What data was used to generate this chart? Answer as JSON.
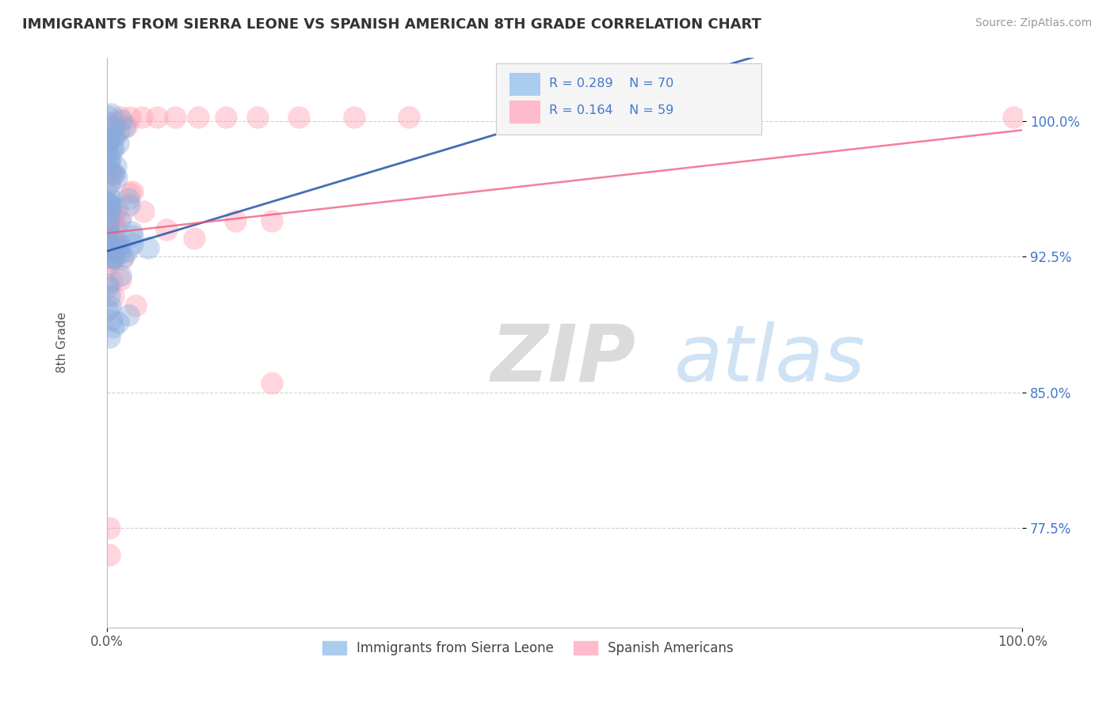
{
  "title": "IMMIGRANTS FROM SIERRA LEONE VS SPANISH AMERICAN 8TH GRADE CORRELATION CHART",
  "source": "Source: ZipAtlas.com",
  "ylabel": "8th Grade",
  "xlim": [
    0.0,
    1.0
  ],
  "ylim": [
    0.72,
    1.035
  ],
  "yticks": [
    0.775,
    0.85,
    0.925,
    1.0
  ],
  "ytick_labels": [
    "77.5%",
    "85.0%",
    "92.5%",
    "100.0%"
  ],
  "xticks": [
    0.0,
    1.0
  ],
  "xtick_labels": [
    "0.0%",
    "100.0%"
  ],
  "legend_label1": "Immigrants from Sierra Leone",
  "legend_label2": "Spanish Americans",
  "color_blue": "#88AADD",
  "color_pink": "#FF99AA",
  "color_blue_line": "#2255AA",
  "color_pink_line": "#EE5577",
  "watermark_zip": "ZIP",
  "watermark_atlas": "atlas"
}
